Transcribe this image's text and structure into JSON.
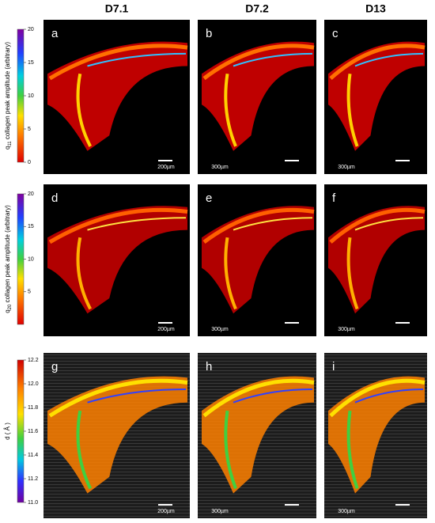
{
  "columns": [
    "D7.1",
    "D7.2",
    "D13"
  ],
  "rows": [
    {
      "colorbar": {
        "label_symbol": "q",
        "label_subscript": "11",
        "label_text": " collagen peak amplitude (arbitrary)",
        "lim": [
          0,
          20
        ],
        "ticks": [
          0,
          5,
          10,
          15,
          20
        ]
      },
      "panels": [
        {
          "letter": "a",
          "scalebar": "200µm"
        },
        {
          "letter": "b",
          "scalebar": "300µm"
        },
        {
          "letter": "c",
          "scalebar": "300µm"
        }
      ]
    },
    {
      "colorbar": {
        "label_symbol": "q",
        "label_subscript": "20",
        "label_text": " collagen peak amplitude (arbitrary)",
        "lim": [
          0,
          20
        ],
        "ticks": [
          5,
          10,
          15,
          20
        ]
      },
      "panels": [
        {
          "letter": "d",
          "scalebar": "200µm"
        },
        {
          "letter": "e",
          "scalebar": "300µm"
        },
        {
          "letter": "f",
          "scalebar": "300µm"
        }
      ]
    },
    {
      "colorbar": {
        "label_symbol": "d ( Å )",
        "lim": [
          11.0,
          12.2
        ],
        "ticks": [
          {
            "value": 11,
            "label": "11.0"
          },
          11.2,
          11.4,
          11.6,
          11.8,
          {
            "value": 12,
            "label": "12.0"
          },
          12.2
        ]
      },
      "panels": [
        {
          "letter": "g",
          "scalebar": "200µm"
        },
        {
          "letter": "h",
          "scalebar": "300µm"
        },
        {
          "letter": "i",
          "scalebar": "300µm"
        }
      ]
    }
  ]
}
